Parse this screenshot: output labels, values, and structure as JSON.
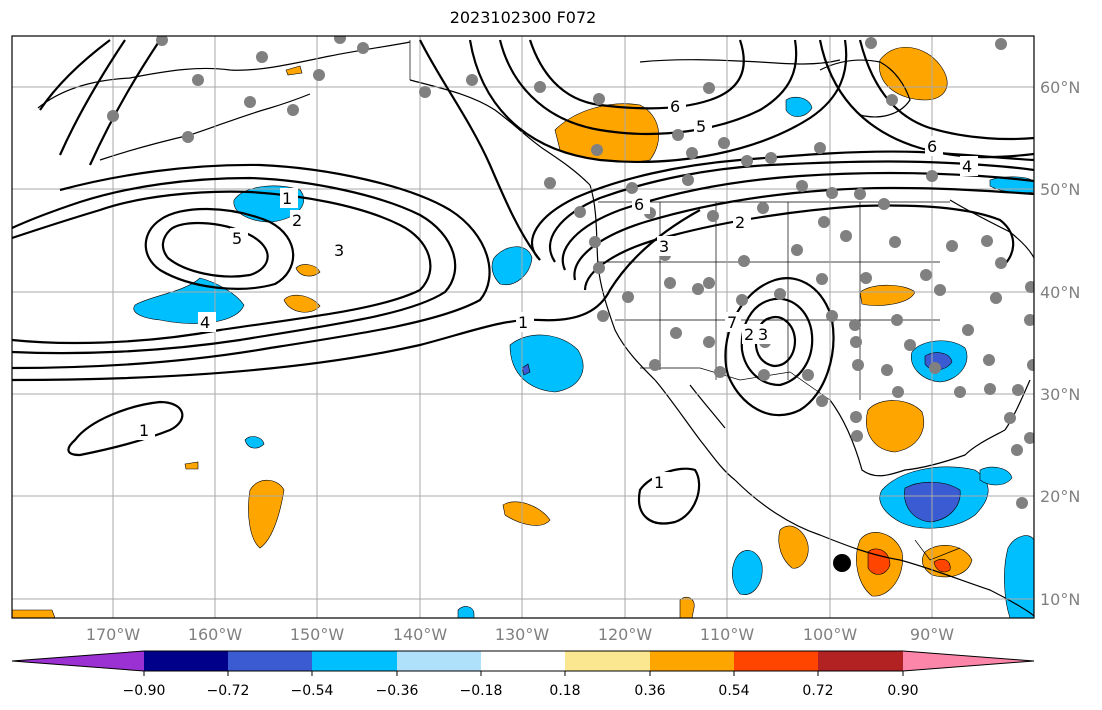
{
  "title": "2023102300 F072",
  "colors": {
    "neg_090": "#9b30d3",
    "neg_072": "#00008b",
    "neg_054": "#3a5bd1",
    "neg_036": "#00bfff",
    "neg_018": "#afe1fa",
    "neutral": "#ffffff",
    "pos_018": "#fbe78f",
    "pos_036": "#ffa500",
    "pos_054": "#ff4500",
    "pos_072": "#b22222",
    "pos_090": "#fc86a9",
    "gridline": "#a9a9a9",
    "coast": "#000000",
    "contour": "#000000",
    "station": "#808080"
  },
  "lon_labels": [
    "170°W",
    "160°W",
    "150°W",
    "140°W",
    "130°W",
    "120°W",
    "110°W",
    "100°W",
    "90°W"
  ],
  "lat_labels": [
    "60°N",
    "50°N",
    "40°N",
    "30°N",
    "20°N",
    "10°N"
  ],
  "contour_labels": [
    "6",
    "5",
    "6",
    "4",
    "1",
    "2",
    "5",
    "3",
    "4",
    "6",
    "3",
    "2",
    "1",
    "7",
    "2",
    "3",
    "1",
    "1"
  ],
  "colorbar": {
    "labels": [
      "−0.90",
      "−0.72",
      "−0.54",
      "−0.36",
      "−0.18",
      "0.18",
      "0.36",
      "0.54",
      "0.72",
      "0.90"
    ]
  }
}
